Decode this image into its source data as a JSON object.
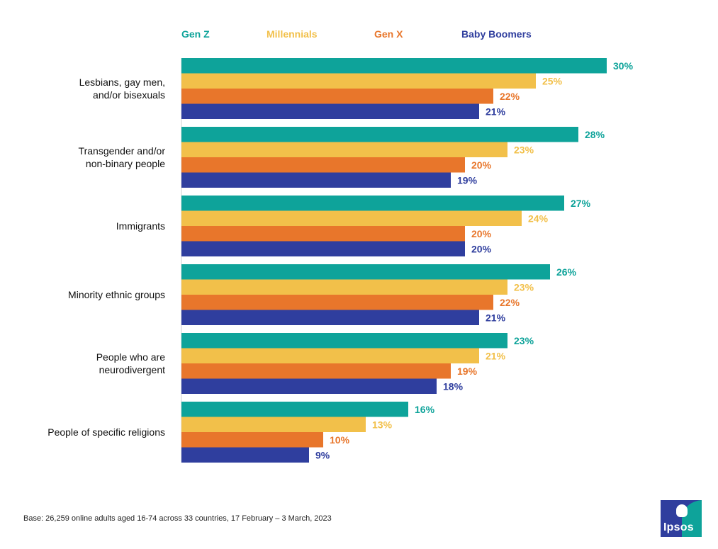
{
  "chart_data": {
    "type": "bar",
    "orientation": "horizontal",
    "categories": [
      [
        "Lesbians, gay men,",
        "and/or bisexuals"
      ],
      [
        "Transgender and/or",
        "non-binary people"
      ],
      [
        "Immigrants"
      ],
      [
        "Minority ethnic groups"
      ],
      [
        "People who are",
        "neurodivergent"
      ],
      [
        "People of specific religions"
      ]
    ],
    "series": [
      {
        "name": "Gen Z",
        "color": "#0ea39a",
        "values": [
          30,
          28,
          27,
          26,
          23,
          16
        ]
      },
      {
        "name": "Millennials",
        "color": "#f2c04a",
        "values": [
          25,
          23,
          24,
          23,
          21,
          13
        ]
      },
      {
        "name": "Gen X",
        "color": "#e8762b",
        "values": [
          22,
          20,
          20,
          22,
          19,
          10
        ]
      },
      {
        "name": "Baby Boomers",
        "color": "#2f3e9e",
        "values": [
          21,
          19,
          20,
          21,
          18,
          9
        ]
      }
    ],
    "label_suffix": "%",
    "xlim": [
      0,
      30
    ],
    "grid": false,
    "legend_position": "top"
  },
  "labels": {
    "footnote": "Base: 26,259 online adults aged 16-74 across 33 countries, 17 February – 3 March, 2023"
  },
  "logo": {
    "text": "Ipsos",
    "colors": [
      "#2f3e9e",
      "#0ea39a"
    ]
  }
}
